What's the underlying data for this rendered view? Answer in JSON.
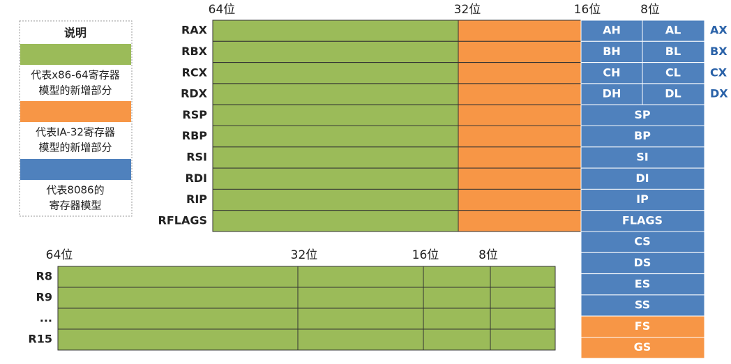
{
  "legend": {
    "title": "说明",
    "items": [
      [
        "代表x86-64寄存器",
        "模型的新增部分"
      ],
      [
        "代表IA-32寄存器",
        "模型的新增部分"
      ],
      [
        "代表8086的",
        "寄存器模型"
      ]
    ]
  },
  "top_bits": [
    "64位",
    "32位",
    "16位",
    "8位"
  ],
  "general_registers": [
    {
      "name": "RAX",
      "high": "AH",
      "low": "AL",
      "word": "AX"
    },
    {
      "name": "RBX",
      "high": "BH",
      "low": "BL",
      "word": "BX"
    },
    {
      "name": "RCX",
      "high": "CH",
      "low": "CL",
      "word": "CX"
    },
    {
      "name": "RDX",
      "high": "DH",
      "low": "DL",
      "word": "DX"
    }
  ],
  "other_registers": [
    {
      "name": "RSP",
      "part16": "SP"
    },
    {
      "name": "RBP",
      "part16": "BP"
    },
    {
      "name": "RSI",
      "part16": "SI"
    },
    {
      "name": "RDI",
      "part16": "DI"
    },
    {
      "name": "RIP",
      "part16": "IP"
    },
    {
      "name": "RFLAGS",
      "part16": "FLAGS"
    }
  ],
  "segment_registers": [
    "CS",
    "DS",
    "ES",
    "SS",
    "FS",
    "GS"
  ],
  "bottom_bits": [
    "64位",
    "32位",
    "16位",
    "8位"
  ],
  "extended_registers": [
    "R8",
    "R9",
    "...",
    "R15"
  ]
}
